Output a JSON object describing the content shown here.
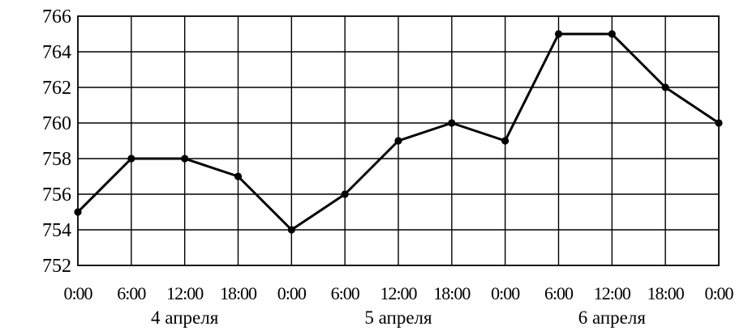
{
  "chart_data": {
    "type": "line",
    "title": "",
    "xlabel": "",
    "ylabel": "",
    "x_tick_labels": [
      "0:00",
      "6:00",
      "12:00",
      "18:00",
      "0:00",
      "6:00",
      "12:00",
      "18:00",
      "0:00",
      "6:00",
      "12:00",
      "18:00",
      "0:00"
    ],
    "day_labels": [
      "4 апреля",
      "5 апреля",
      "6 апреля"
    ],
    "yticks": [
      752,
      754,
      756,
      758,
      760,
      762,
      764,
      766
    ],
    "ylim": [
      752,
      766
    ],
    "grid": true,
    "legend": "none",
    "line_color": "#000000",
    "series": [
      {
        "values": [
          755,
          758,
          758,
          757,
          754,
          756,
          759,
          760,
          759,
          765,
          765,
          762,
          760
        ]
      }
    ]
  }
}
